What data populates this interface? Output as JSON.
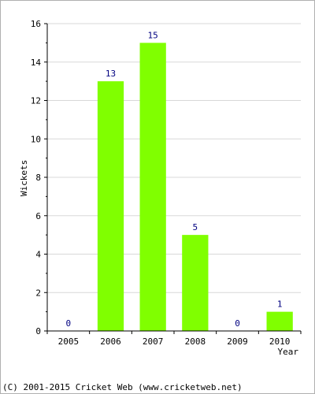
{
  "chart_data": {
    "type": "bar",
    "categories": [
      "2005",
      "2006",
      "2007",
      "2008",
      "2009",
      "2010"
    ],
    "values": [
      0,
      13,
      15,
      5,
      0,
      1
    ],
    "title": "",
    "xlabel": "Year",
    "ylabel": "Wickets",
    "ylim": [
      0,
      16
    ],
    "yticks": [
      0,
      2,
      4,
      6,
      8,
      10,
      12,
      14,
      16
    ],
    "grid": true,
    "bar_color": "#80ff00",
    "zero_label_color": "#000080"
  },
  "footer": "(C) 2001-2015 Cricket Web (www.cricketweb.net)"
}
